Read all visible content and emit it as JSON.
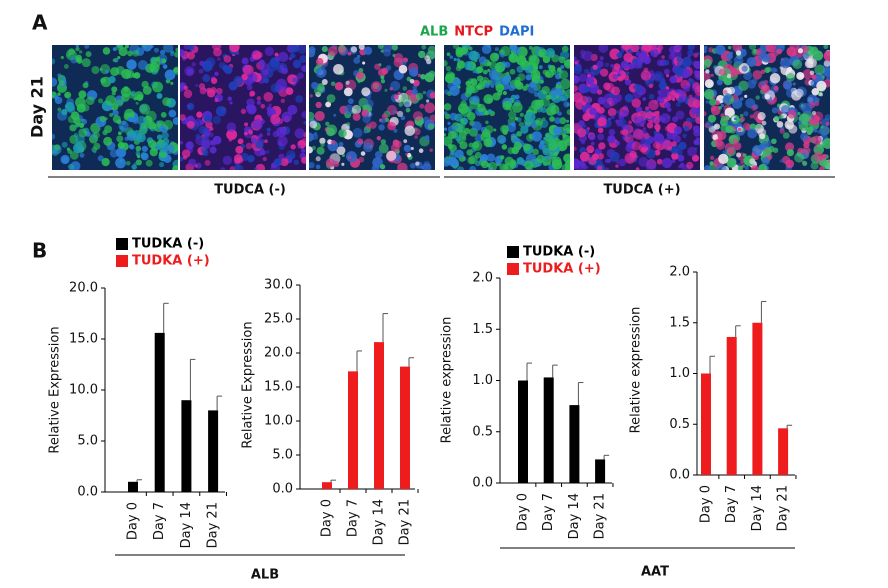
{
  "panel_labels": [
    "A",
    "B"
  ],
  "stain_legend": [
    {
      "text": "ALB",
      "color": "#1aa64a"
    },
    {
      "text": "NTCP",
      "color": "#e8161c"
    },
    {
      "text": "DAPI",
      "color": "#1f6fd1"
    }
  ],
  "day_label": "Day 21",
  "image_groups": [
    "TUDCA (-)",
    "TUDCA (+)"
  ],
  "group_labels": [
    "ALB",
    "AAT"
  ],
  "chart_data": [
    {
      "type": "bar",
      "y_label": "Relative Expression",
      "legend": "top-left",
      "categories": [
        "Day 0",
        "Day 7",
        "Day 14",
        "Day 21"
      ],
      "series": [
        {
          "name": "TUDKA (-)",
          "color": "#000000",
          "values": [
            1.0,
            15.6,
            9.0,
            8.0
          ],
          "errors": [
            0.2,
            2.9,
            4.0,
            1.4
          ]
        }
      ],
      "ylim": [
        0,
        20
      ],
      "yticks": [
        {
          "value": 0,
          "label": "0.0"
        },
        {
          "value": 5,
          "label": "5.0"
        },
        {
          "value": 10,
          "label": "10.0"
        },
        {
          "value": 15,
          "label": "15.0"
        },
        {
          "value": 20,
          "label": "20.0"
        }
      ]
    },
    {
      "type": "bar",
      "y_label": "Relative Expression",
      "categories": [
        "Day 0",
        "Day 7",
        "Day 14",
        "Day 21"
      ],
      "series": [
        {
          "name": "TUDKA (+)",
          "color": "#ee1c1c",
          "values": [
            1.0,
            17.3,
            21.6,
            18.0
          ],
          "errors": [
            0.3,
            3.0,
            4.2,
            1.3
          ]
        }
      ],
      "ylim": [
        0,
        30
      ],
      "yticks": [
        {
          "value": 0,
          "label": "0.0"
        },
        {
          "value": 5,
          "label": "5.0"
        },
        {
          "value": 10,
          "label": "10.0"
        },
        {
          "value": 15,
          "label": "15.0"
        },
        {
          "value": 20,
          "label": "20.0"
        },
        {
          "value": 25,
          "label": "25.0"
        },
        {
          "value": 30,
          "label": "30.0"
        }
      ]
    },
    {
      "type": "bar",
      "y_label": "Relative expression",
      "legend": "top-left",
      "categories": [
        "Day 0",
        "Day 7",
        "Day 14",
        "Day 21"
      ],
      "series": [
        {
          "name": "TUDKA (-)",
          "color": "#000000",
          "values": [
            1.0,
            1.03,
            0.76,
            0.23
          ],
          "errors": [
            0.17,
            0.12,
            0.22,
            0.04
          ]
        }
      ],
      "ylim": [
        0,
        2
      ],
      "yticks": [
        {
          "value": 0,
          "label": "0.0"
        },
        0.5,
        {
          "value": 1,
          "label": "1.0"
        },
        1.5,
        {
          "value": 2,
          "label": "2.0"
        }
      ]
    },
    {
      "type": "bar",
      "y_label": "Relative expression",
      "categories": [
        "Day 0",
        "Day 7",
        "Day 14",
        "Day 21"
      ],
      "series": [
        {
          "name": "TUDKA (+)",
          "color": "#ee1c1c",
          "values": [
            1.0,
            1.36,
            1.5,
            0.46
          ],
          "errors": [
            0.17,
            0.11,
            0.21,
            0.03
          ]
        }
      ],
      "ylim": [
        0,
        2
      ],
      "yticks": [
        {
          "value": 0,
          "label": "0.0"
        },
        0.5,
        {
          "value": 1,
          "label": "1.0"
        },
        1.5,
        {
          "value": 2,
          "label": "2.0"
        }
      ]
    }
  ]
}
